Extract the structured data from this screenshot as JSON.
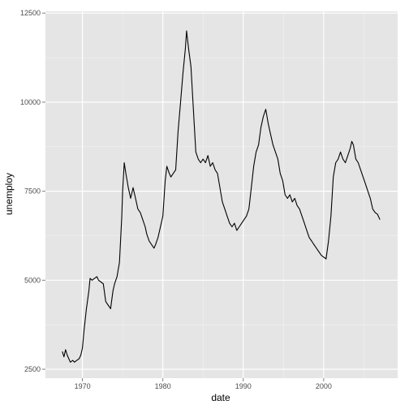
{
  "chart_data": {
    "type": "line",
    "title": "",
    "xlabel": "date",
    "ylabel": "unemploy",
    "xlim": [
      1965.4,
      2009.2
    ],
    "ylim": [
      2250,
      12550
    ],
    "x_ticks": [
      1970,
      1980,
      1990,
      2000
    ],
    "x_tick_labels": [
      "1970",
      "1980",
      "1990",
      "2000"
    ],
    "y_ticks": [
      2500,
      5000,
      7500,
      10000,
      12500
    ],
    "y_tick_labels": [
      "2500",
      "5000",
      "7500",
      "10000",
      "12500"
    ],
    "grid": true,
    "legend": "none",
    "colors": {
      "panel": "#e5e5e5",
      "grid_major": "#ffffff",
      "grid_minor": "#f2f2f2",
      "line": "#000000"
    },
    "series": [
      {
        "x": [
          1967.5,
          1967.7,
          1967.9,
          1968.1,
          1968.3,
          1968.5,
          1968.8,
          1969.0,
          1969.3,
          1969.6,
          1969.8,
          1970.0,
          1970.2,
          1970.5,
          1970.8,
          1970.95,
          1971.2,
          1971.5,
          1971.8,
          1972.0,
          1972.3,
          1972.6,
          1972.9,
          1973.2,
          1973.5,
          1973.8,
          1974.0,
          1974.3,
          1974.6,
          1974.9,
          1975.0,
          1975.2,
          1975.4,
          1975.7,
          1976.0,
          1976.3,
          1976.6,
          1976.9,
          1977.2,
          1977.5,
          1977.8,
          1978.0,
          1978.3,
          1978.6,
          1978.9,
          1979.1,
          1979.4,
          1979.7,
          1980.0,
          1980.3,
          1980.5,
          1980.8,
          1981.0,
          1981.3,
          1981.6,
          1981.9,
          1982.2,
          1982.5,
          1982.8,
          1982.95,
          1983.2,
          1983.5,
          1983.8,
          1984.1,
          1984.4,
          1984.7,
          1985.0,
          1985.3,
          1985.6,
          1985.9,
          1986.2,
          1986.5,
          1986.8,
          1987.1,
          1987.4,
          1987.7,
          1988.0,
          1988.3,
          1988.6,
          1988.9,
          1989.2,
          1989.5,
          1989.8,
          1990.1,
          1990.4,
          1990.7,
          1991.0,
          1991.3,
          1991.6,
          1991.9,
          1992.2,
          1992.5,
          1992.8,
          1993.1,
          1993.4,
          1993.7,
          1994.0,
          1994.3,
          1994.6,
          1994.9,
          1995.2,
          1995.5,
          1995.8,
          1996.1,
          1996.4,
          1996.7,
          1997.0,
          1997.3,
          1997.6,
          1997.9,
          1998.2,
          1998.5,
          1998.8,
          1999.1,
          1999.4,
          1999.7,
          2000.0,
          2000.3,
          2000.6,
          2000.9,
          2001.2,
          2001.5,
          2001.8,
          2002.1,
          2002.4,
          2002.7,
          2003.0,
          2003.3,
          2003.5,
          2003.7,
          2004.0,
          2004.3,
          2004.6,
          2004.9,
          2005.2,
          2005.5,
          2005.8,
          2006.1,
          2006.4,
          2006.7,
          2007.0
        ],
        "y": [
          3000,
          2850,
          3050,
          2900,
          2800,
          2700,
          2750,
          2700,
          2750,
          2800,
          2900,
          3100,
          3600,
          4200,
          4700,
          5050,
          5000,
          5050,
          5100,
          5000,
          4950,
          4900,
          4400,
          4300,
          4200,
          4700,
          4900,
          5100,
          5500,
          6800,
          7500,
          8300,
          8000,
          7600,
          7300,
          7600,
          7300,
          7000,
          6900,
          6700,
          6500,
          6300,
          6100,
          6000,
          5900,
          6000,
          6200,
          6500,
          6800,
          7800,
          8200,
          8000,
          7900,
          8000,
          8100,
          9200,
          10000,
          10800,
          11500,
          12000,
          11500,
          11000,
          9800,
          8600,
          8400,
          8300,
          8400,
          8300,
          8500,
          8200,
          8300,
          8100,
          8000,
          7600,
          7200,
          7000,
          6800,
          6600,
          6500,
          6600,
          6400,
          6500,
          6600,
          6700,
          6800,
          7000,
          7600,
          8200,
          8600,
          8800,
          9300,
          9600,
          9800,
          9400,
          9100,
          8800,
          8600,
          8400,
          8000,
          7800,
          7400,
          7300,
          7400,
          7200,
          7300,
          7100,
          7000,
          6800,
          6600,
          6400,
          6200,
          6100,
          6000,
          5900,
          5800,
          5700,
          5650,
          5600,
          6100,
          6800,
          7900,
          8300,
          8400,
          8600,
          8400,
          8300,
          8500,
          8700,
          8900,
          8800,
          8400,
          8300,
          8100,
          7900,
          7700,
          7500,
          7300,
          7000,
          6900,
          6850,
          6700
        ]
      }
    ]
  }
}
